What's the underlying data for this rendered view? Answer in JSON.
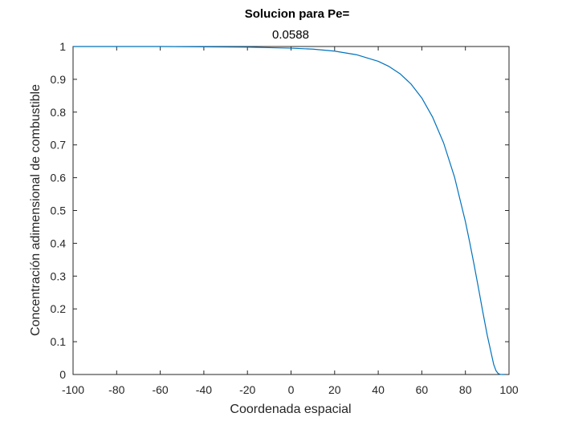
{
  "chart_data": {
    "type": "line",
    "title": "Solucion para Pe=",
    "subtitle": "0.0588",
    "xlabel": "Coordenada espacial",
    "ylabel": "Concentración adimensional de combustible",
    "xlim": [
      -100,
      100
    ],
    "ylim": [
      0,
      1
    ],
    "xticks": [
      -100,
      -80,
      -60,
      -40,
      -20,
      0,
      20,
      40,
      60,
      80,
      100
    ],
    "yticks": [
      0,
      0.1,
      0.2,
      0.3,
      0.4,
      0.5,
      0.6,
      0.7,
      0.8,
      0.9,
      1
    ],
    "xtick_labels": [
      "-100",
      "-80",
      "-60",
      "-40",
      "-20",
      "0",
      "20",
      "40",
      "60",
      "80",
      "100"
    ],
    "ytick_labels": [
      "0",
      "0.1",
      "0.2",
      "0.3",
      "0.4",
      "0.5",
      "0.6",
      "0.7",
      "0.8",
      "0.9",
      "1"
    ],
    "grid": false,
    "box": true,
    "series": [
      {
        "color": "#0072BD",
        "x": [
          -100,
          -80,
          -60,
          -40,
          -20,
          0,
          10,
          20,
          30,
          40,
          45,
          50,
          55,
          60,
          65,
          70,
          75,
          80,
          82,
          84,
          86,
          88,
          90,
          92,
          93,
          94,
          95,
          96,
          97,
          98
        ],
        "y": [
          1,
          1,
          1,
          0.999,
          0.998,
          0.995,
          0.992,
          0.986,
          0.975,
          0.955,
          0.939,
          0.917,
          0.886,
          0.843,
          0.784,
          0.706,
          0.602,
          0.466,
          0.402,
          0.334,
          0.263,
          0.19,
          0.12,
          0.06,
          0.03,
          0.012,
          0.003,
          0.0005,
          0,
          0
        ]
      }
    ]
  }
}
